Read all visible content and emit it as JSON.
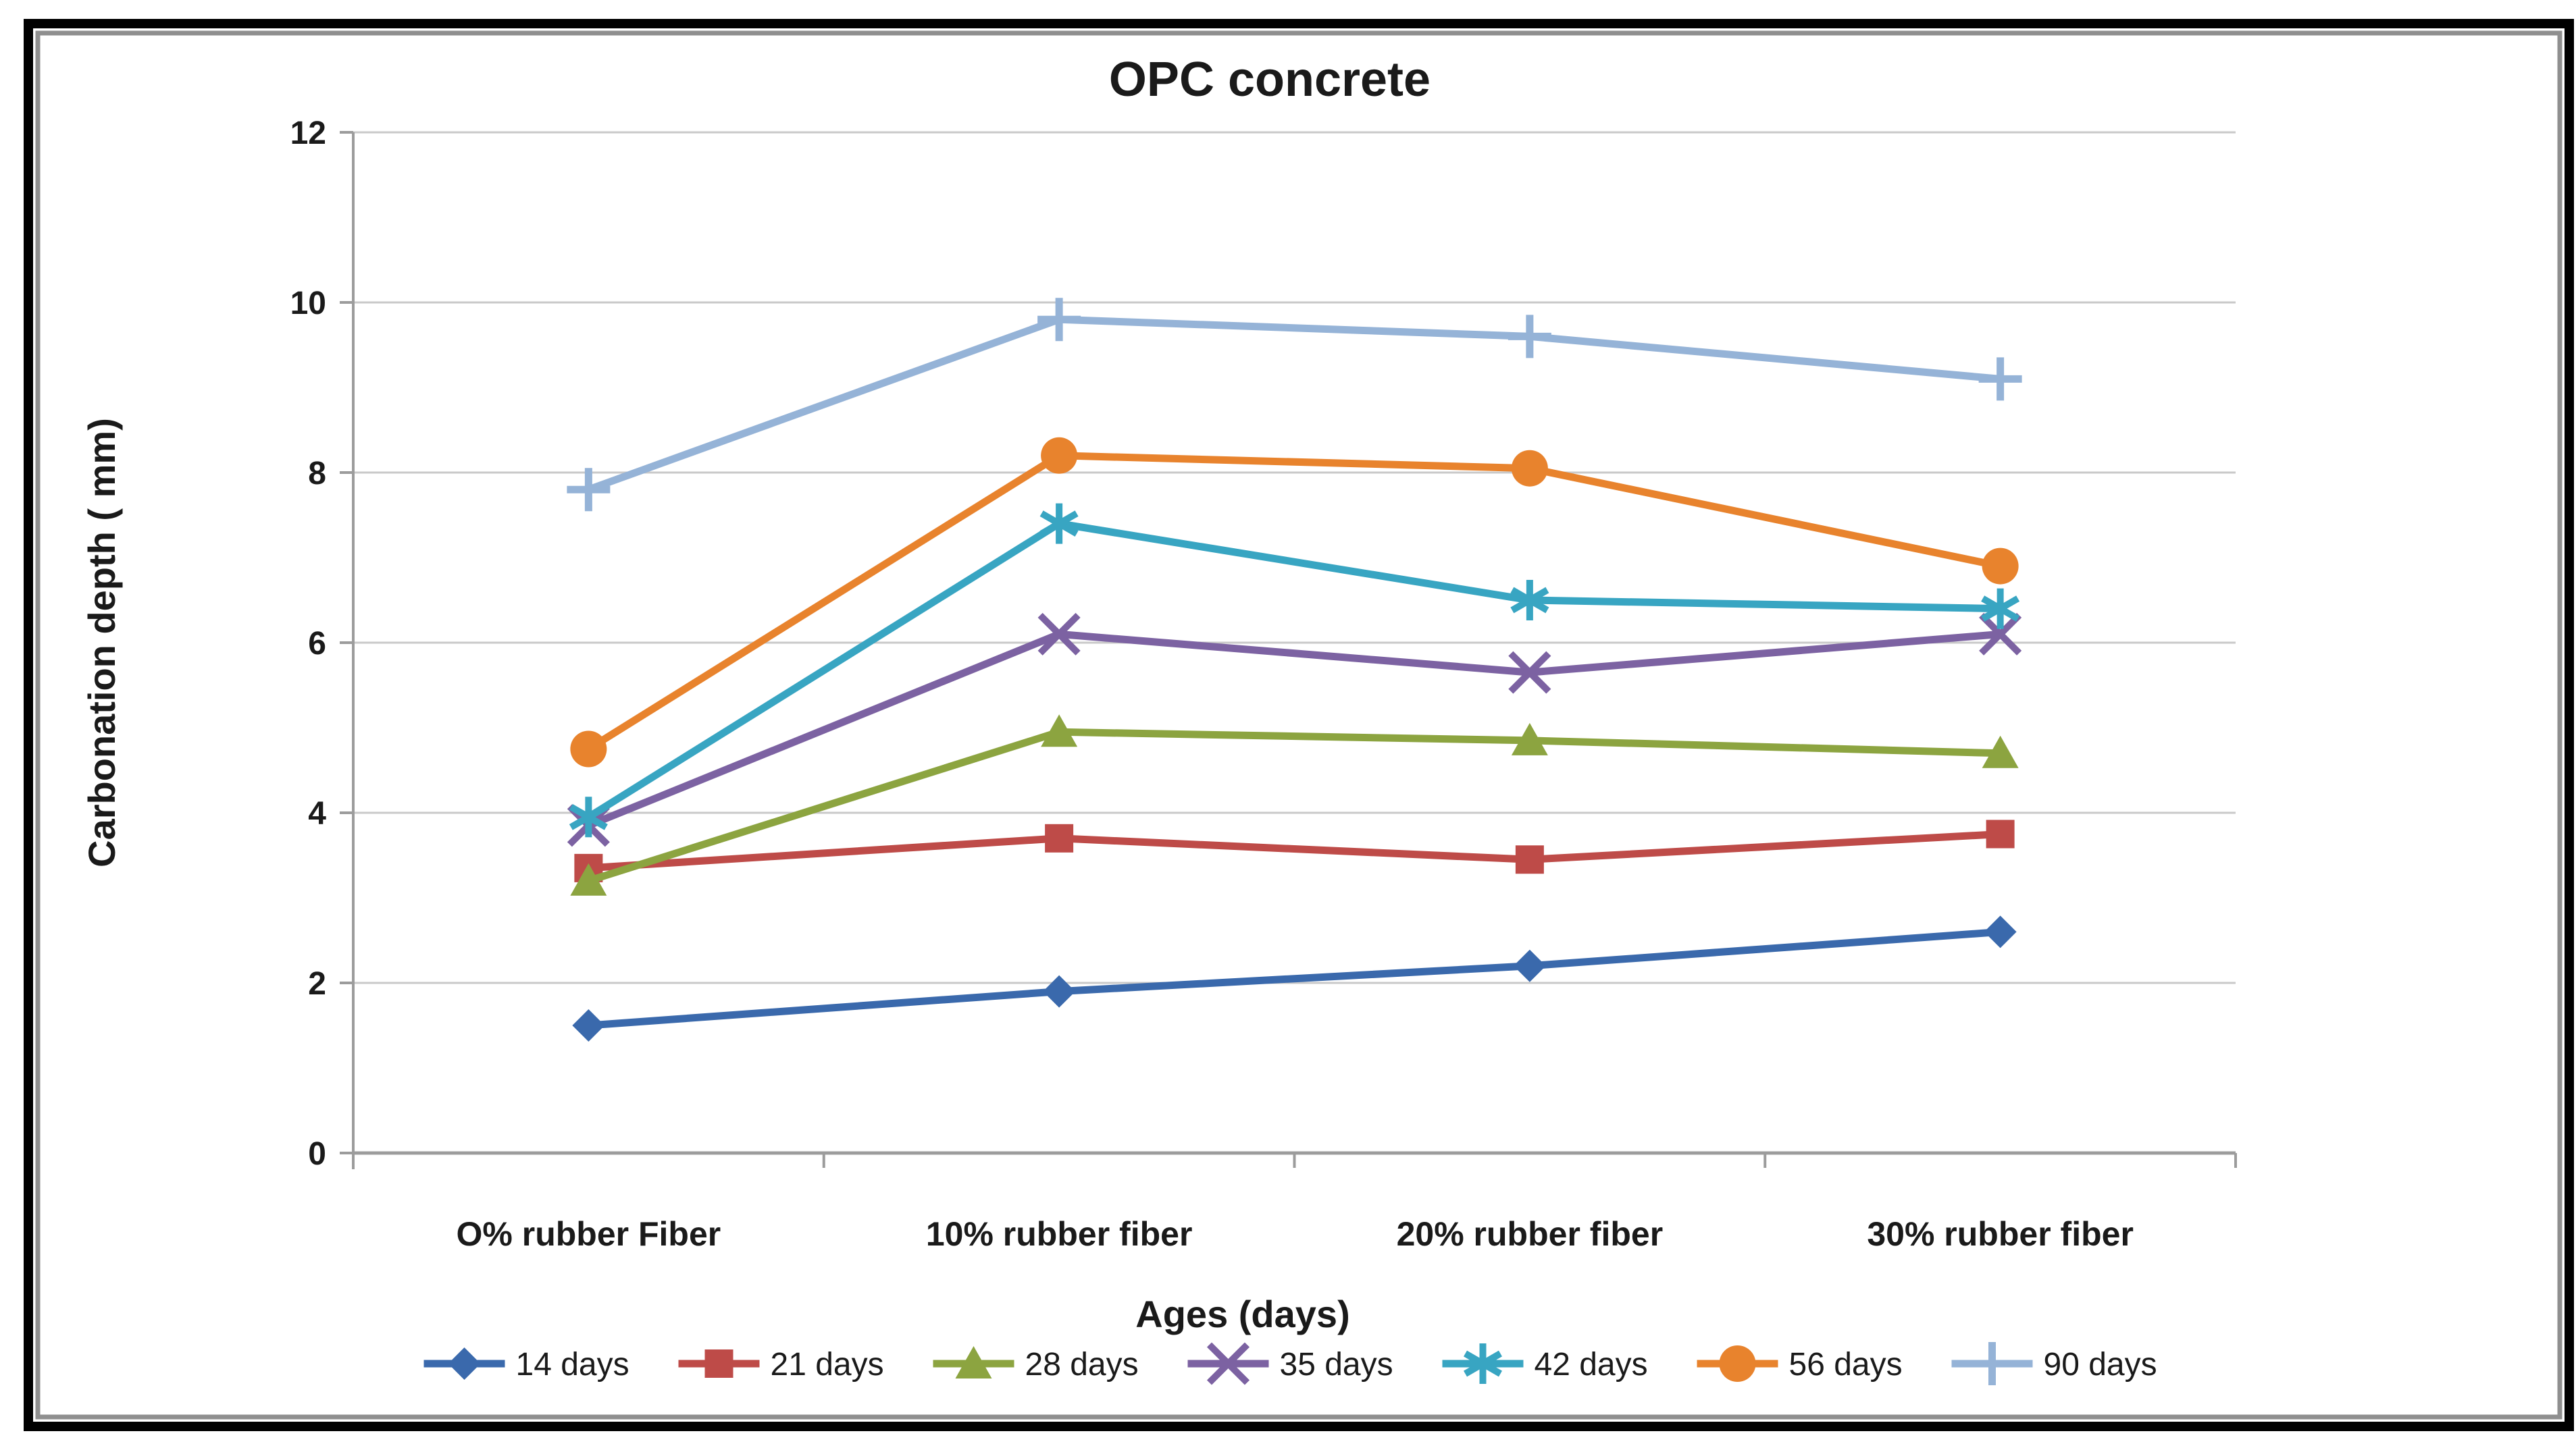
{
  "chart_data": {
    "type": "line",
    "title": "OPC concrete",
    "xlabel": "Ages (days)",
    "ylabel": "Carbonation depth ( mm)",
    "categories": [
      "O% rubber Fiber",
      "10% rubber fiber",
      "20% rubber fiber",
      "30% rubber fiber"
    ],
    "yticks": [
      0,
      2,
      4,
      6,
      8,
      10,
      12
    ],
    "ylim": [
      0,
      12
    ],
    "grid": true,
    "legend_position": "bottom",
    "colors": {
      "grid_color": "#C9C9C9",
      "axis_color": "#9C9C9C",
      "frame_color": "#000000",
      "frame_shadow_color": "#8F8F8F",
      "background": "#FFFFFF"
    },
    "series": [
      {
        "name": "14 days",
        "marker": "diamond",
        "color": "#3A69AC",
        "values": [
          1.5,
          1.9,
          2.2,
          2.6
        ]
      },
      {
        "name": "21 days",
        "marker": "square",
        "color": "#BE4B48",
        "values": [
          3.35,
          3.7,
          3.45,
          3.75
        ]
      },
      {
        "name": "28 days",
        "marker": "triangle",
        "color": "#8CA440",
        "values": [
          3.2,
          4.95,
          4.85,
          4.7
        ]
      },
      {
        "name": "35 days",
        "marker": "x",
        "color": "#7C62A2",
        "values": [
          3.85,
          6.1,
          5.65,
          6.1
        ]
      },
      {
        "name": "42 days",
        "marker": "asterisk",
        "color": "#38A5C2",
        "values": [
          3.95,
          7.4,
          6.5,
          6.4
        ]
      },
      {
        "name": "56 days",
        "marker": "circle",
        "color": "#E8832D",
        "values": [
          4.75,
          8.2,
          8.05,
          6.9
        ]
      },
      {
        "name": "90 days",
        "marker": "plus",
        "color": "#95B3D7",
        "values": [
          7.8,
          9.8,
          9.6,
          9.1
        ]
      }
    ]
  }
}
